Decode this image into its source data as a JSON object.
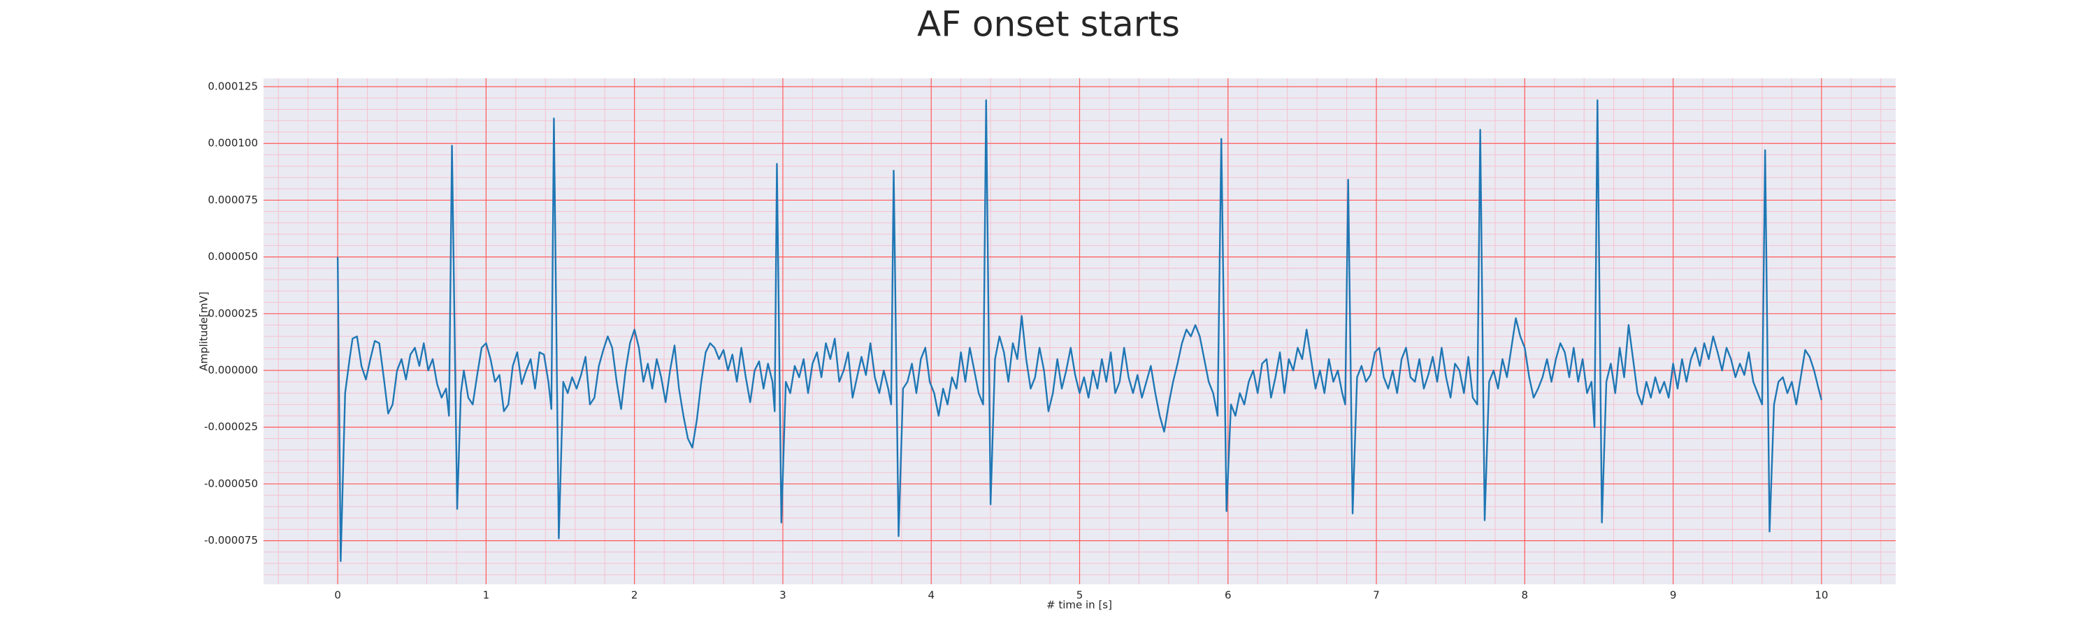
{
  "chart_data": {
    "type": "line",
    "title": "AF onset starts",
    "xlabel": "# time in [s]",
    "ylabel": "Amplitude[mV]",
    "color": "#1f77b4",
    "grid": true,
    "minor_grid": true,
    "x_minor_step": 0.2,
    "y_minor_step": 5e-06,
    "xlim": [
      -0.5,
      10.5
    ],
    "xticks": [
      0,
      1,
      2,
      3,
      4,
      5,
      6,
      7,
      8,
      9,
      10
    ],
    "ylim": [
      -9.42e-05,
      0.0001287
    ],
    "yticks": [
      {
        "value": -7.5e-05,
        "label": "-0.000075"
      },
      {
        "value": -5e-05,
        "label": "-0.000050"
      },
      {
        "value": -2.5e-05,
        "label": "-0.000025"
      },
      {
        "value": 0,
        "label": "0.000000"
      },
      2.5e-05,
      {
        "value": 5e-05,
        "label": "0.000050"
      },
      7.5e-05,
      {
        "value": 0.0001,
        "label": "0.000100"
      },
      0.000125
    ],
    "x": [
      0,
      0.02,
      0.05,
      0.08,
      0.1,
      0.13,
      0.16,
      0.19,
      0.22,
      0.25,
      0.28,
      0.31,
      0.34,
      0.37,
      0.4,
      0.43,
      0.46,
      0.49,
      0.52,
      0.55,
      0.58,
      0.61,
      0.64,
      0.67,
      0.7,
      0.73,
      0.75,
      0.77,
      0.805,
      0.83,
      0.85,
      0.88,
      0.91,
      0.94,
      0.97,
      1.0,
      1.03,
      1.06,
      1.09,
      1.12,
      1.15,
      1.18,
      1.21,
      1.24,
      1.27,
      1.3,
      1.33,
      1.36,
      1.39,
      1.42,
      1.44,
      1.457,
      1.49,
      1.52,
      1.55,
      1.58,
      1.61,
      1.64,
      1.67,
      1.7,
      1.73,
      1.76,
      1.79,
      1.82,
      1.85,
      1.88,
      1.91,
      1.94,
      1.97,
      2.0,
      2.03,
      2.06,
      2.09,
      2.12,
      2.15,
      2.18,
      2.21,
      2.24,
      2.27,
      2.3,
      2.33,
      2.36,
      2.39,
      2.42,
      2.45,
      2.48,
      2.51,
      2.54,
      2.57,
      2.6,
      2.63,
      2.66,
      2.69,
      2.72,
      2.75,
      2.78,
      2.81,
      2.84,
      2.87,
      2.9,
      2.93,
      2.945,
      2.96,
      2.99,
      3.02,
      3.05,
      3.08,
      3.11,
      3.14,
      3.17,
      3.2,
      3.23,
      3.26,
      3.29,
      3.32,
      3.35,
      3.38,
      3.41,
      3.44,
      3.47,
      3.5,
      3.53,
      3.56,
      3.59,
      3.62,
      3.65,
      3.68,
      3.71,
      3.73,
      3.747,
      3.78,
      3.81,
      3.84,
      3.87,
      3.9,
      3.93,
      3.96,
      3.99,
      4.02,
      4.05,
      4.08,
      4.11,
      4.14,
      4.17,
      4.2,
      4.23,
      4.26,
      4.29,
      4.32,
      4.35,
      4.37,
      4.4,
      4.43,
      4.46,
      4.49,
      4.52,
      4.55,
      4.58,
      4.61,
      4.64,
      4.67,
      4.7,
      4.73,
      4.76,
      4.79,
      4.82,
      4.85,
      4.88,
      4.91,
      4.94,
      4.97,
      5.0,
      5.03,
      5.06,
      5.09,
      5.12,
      5.15,
      5.18,
      5.21,
      5.24,
      5.27,
      5.3,
      5.33,
      5.36,
      5.39,
      5.42,
      5.45,
      5.48,
      5.51,
      5.54,
      5.57,
      5.6,
      5.63,
      5.66,
      5.69,
      5.72,
      5.75,
      5.78,
      5.81,
      5.84,
      5.87,
      5.9,
      5.93,
      5.955,
      5.99,
      6.02,
      6.05,
      6.08,
      6.11,
      6.14,
      6.17,
      6.2,
      6.23,
      6.26,
      6.29,
      6.32,
      6.35,
      6.38,
      6.41,
      6.44,
      6.47,
      6.5,
      6.53,
      6.56,
      6.59,
      6.62,
      6.65,
      6.68,
      6.71,
      6.74,
      6.77,
      6.79,
      6.81,
      6.84,
      6.87,
      6.9,
      6.93,
      6.96,
      6.99,
      7.02,
      7.05,
      7.08,
      7.11,
      7.14,
      7.17,
      7.2,
      7.23,
      7.26,
      7.29,
      7.32,
      7.35,
      7.38,
      7.41,
      7.44,
      7.47,
      7.5,
      7.53,
      7.56,
      7.59,
      7.62,
      7.65,
      7.68,
      7.7,
      7.73,
      7.76,
      7.79,
      7.82,
      7.85,
      7.88,
      7.91,
      7.94,
      7.97,
      8.0,
      8.03,
      8.06,
      8.09,
      8.12,
      8.15,
      8.18,
      8.21,
      8.24,
      8.27,
      8.3,
      8.33,
      8.36,
      8.39,
      8.42,
      8.45,
      8.47,
      8.49,
      8.52,
      8.55,
      8.58,
      8.61,
      8.64,
      8.67,
      8.7,
      8.73,
      8.76,
      8.79,
      8.82,
      8.85,
      8.88,
      8.91,
      8.94,
      8.97,
      9.0,
      9.03,
      9.06,
      9.09,
      9.12,
      9.15,
      9.18,
      9.21,
      9.24,
      9.27,
      9.3,
      9.33,
      9.36,
      9.39,
      9.42,
      9.45,
      9.48,
      9.51,
      9.54,
      9.57,
      9.6,
      9.62,
      9.65,
      9.68,
      9.71,
      9.74,
      9.77,
      9.8,
      9.83,
      9.86,
      9.89,
      9.92,
      9.95,
      9.98,
      10.0
    ],
    "values": [
      5e-05,
      -8.4e-05,
      -1e-05,
      5e-06,
      1.4e-05,
      1.5e-05,
      2e-06,
      -4e-06,
      5e-06,
      1.3e-05,
      1.2e-05,
      -3e-06,
      -1.9e-05,
      -1.5e-05,
      0,
      5e-06,
      -4e-06,
      7e-06,
      1e-05,
      2e-06,
      1.2e-05,
      0,
      5e-06,
      -6e-06,
      -1.2e-05,
      -8e-06,
      -2e-05,
      9.9e-05,
      -6.1e-05,
      -1e-05,
      0,
      -1.2e-05,
      -1.5e-05,
      -2e-06,
      1e-05,
      1.2e-05,
      5e-06,
      -5e-06,
      -2e-06,
      -1.8e-05,
      -1.5e-05,
      2e-06,
      8e-06,
      -6e-06,
      0,
      5e-06,
      -8e-06,
      8e-06,
      7e-06,
      -5e-06,
      -1.7e-05,
      0.000111,
      -7.4e-05,
      -5e-06,
      -1e-05,
      -3e-06,
      -8e-06,
      -2e-06,
      6e-06,
      -1.5e-05,
      -1.2e-05,
      2e-06,
      9e-06,
      1.5e-05,
      1e-05,
      -5e-06,
      -1.7e-05,
      0,
      1.2e-05,
      1.8e-05,
      1e-05,
      -5e-06,
      3e-06,
      -8e-06,
      5e-06,
      -3e-06,
      -1.4e-05,
      0,
      1.1e-05,
      -8e-06,
      -2e-05,
      -3e-05,
      -3.4e-05,
      -2.2e-05,
      -5e-06,
      8e-06,
      1.2e-05,
      1e-05,
      5e-06,
      9e-06,
      0,
      7e-06,
      -5e-06,
      1e-05,
      -3e-06,
      -1.4e-05,
      0,
      4e-06,
      -8e-06,
      3e-06,
      -5e-06,
      -1.8e-05,
      9.1e-05,
      -6.7e-05,
      -5e-06,
      -1e-05,
      2e-06,
      -3e-06,
      5e-06,
      -1e-05,
      3e-06,
      8e-06,
      -3e-06,
      1.2e-05,
      5e-06,
      1.4e-05,
      -5e-06,
      0,
      8e-06,
      -1.2e-05,
      -3e-06,
      6e-06,
      -2e-06,
      1.2e-05,
      -3e-06,
      -1e-05,
      0,
      -8e-06,
      -1.5e-05,
      8.8e-05,
      -7.3e-05,
      -8e-06,
      -5e-06,
      3e-06,
      -1e-05,
      5e-06,
      1e-05,
      -5e-06,
      -1e-05,
      -2e-05,
      -8e-06,
      -1.5e-05,
      -3e-06,
      -8e-06,
      8e-06,
      -5e-06,
      1e-05,
      0,
      -1e-05,
      -1.5e-05,
      0.000119,
      -5.9e-05,
      5e-06,
      1.5e-05,
      8e-06,
      -5e-06,
      1.2e-05,
      5e-06,
      2.4e-05,
      5e-06,
      -8e-06,
      -3e-06,
      1e-05,
      0,
      -1.8e-05,
      -1e-05,
      5e-06,
      -8e-06,
      0,
      1e-05,
      -2e-06,
      -1e-05,
      -3e-06,
      -1.2e-05,
      0,
      -8e-06,
      5e-06,
      -5e-06,
      8e-06,
      -1e-05,
      -5e-06,
      1e-05,
      -3e-06,
      -1e-05,
      -2e-06,
      -1.2e-05,
      -5e-06,
      2e-06,
      -1e-05,
      -2e-05,
      -2.7e-05,
      -1.5e-05,
      -5e-06,
      3e-06,
      1.2e-05,
      1.8e-05,
      1.5e-05,
      2e-05,
      1.5e-05,
      5e-06,
      -5e-06,
      -1e-05,
      -2e-05,
      0.000102,
      -6.2e-05,
      -1.5e-05,
      -2e-05,
      -1e-05,
      -1.5e-05,
      -5e-06,
      0,
      -1e-05,
      3e-06,
      5e-06,
      -1.2e-05,
      -3e-06,
      8e-06,
      -1e-05,
      5e-06,
      0,
      1e-05,
      5e-06,
      1.8e-05,
      5e-06,
      -8e-06,
      0,
      -1e-05,
      5e-06,
      -5e-06,
      0,
      -1e-05,
      -1.5e-05,
      8.4e-05,
      -6.3e-05,
      -3e-06,
      2e-06,
      -5e-06,
      -2e-06,
      8e-06,
      1e-05,
      -3e-06,
      -8e-06,
      0,
      -1e-05,
      5e-06,
      1e-05,
      -3e-06,
      -5e-06,
      5e-06,
      -8e-06,
      -2e-06,
      6e-06,
      -5e-06,
      1e-05,
      -3e-06,
      -1.2e-05,
      3e-06,
      0,
      -1e-05,
      6e-06,
      -1.2e-05,
      -1.5e-05,
      0.000106,
      -6.6e-05,
      -5e-06,
      0,
      -8e-06,
      5e-06,
      -3e-06,
      1e-05,
      2.3e-05,
      1.5e-05,
      1e-05,
      -3e-06,
      -1.2e-05,
      -8e-06,
      -3e-06,
      5e-06,
      -5e-06,
      5e-06,
      1.2e-05,
      8e-06,
      -3e-06,
      1e-05,
      -5e-06,
      5e-06,
      -1e-05,
      -5e-06,
      -2.5e-05,
      0.000119,
      -6.7e-05,
      -5e-06,
      3e-06,
      -1e-05,
      1e-05,
      -3e-06,
      2e-05,
      5e-06,
      -1e-05,
      -1.5e-05,
      -5e-06,
      -1.2e-05,
      -3e-06,
      -1e-05,
      -5e-06,
      -1.2e-05,
      3e-06,
      -8e-06,
      5e-06,
      -5e-06,
      5e-06,
      1e-05,
      2e-06,
      1.2e-05,
      5e-06,
      1.5e-05,
      8e-06,
      0,
      1e-05,
      5e-06,
      -3e-06,
      3e-06,
      -2e-06,
      8e-06,
      -5e-06,
      -1e-05,
      -1.5e-05,
      9.7e-05,
      -7.1e-05,
      -1.5e-05,
      -5e-06,
      -3e-06,
      -1e-05,
      -5e-06,
      -1.5e-05,
      -3e-06,
      9e-06,
      6e-06,
      0,
      -8e-06,
      -1.3e-05
    ]
  }
}
